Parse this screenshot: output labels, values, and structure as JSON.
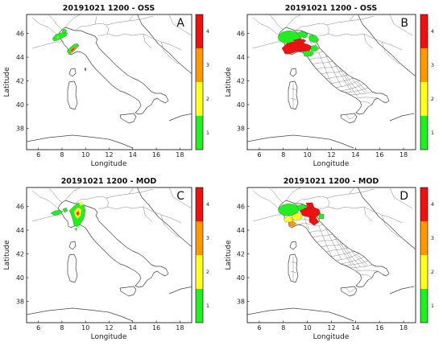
{
  "panels": [
    {
      "title": "20191021 1200 - OSS",
      "letter": "A",
      "xlabel": "Longitude",
      "ylabel": "Latitude",
      "detail": "coarse"
    },
    {
      "title": "20191021 1200 - OSS",
      "letter": "B",
      "xlabel": "Longitude",
      "ylabel": "Latitude",
      "detail": "regions"
    },
    {
      "title": "20191021 1200 - MOD",
      "letter": "C",
      "xlabel": "Longitude",
      "ylabel": "Latitude",
      "detail": "coarse"
    },
    {
      "title": "20191021 1200 - MOD",
      "letter": "D",
      "xlabel": "Longitude",
      "ylabel": "Latitude",
      "detail": "regions"
    }
  ],
  "axes": {
    "xlim": [
      5,
      19
    ],
    "ylim": [
      36.2,
      47.6
    ],
    "xticks": [
      "6",
      "8",
      "10",
      "12",
      "14",
      "16",
      "18"
    ],
    "yticks": [
      "38",
      "40",
      "42",
      "44",
      "46"
    ]
  },
  "colorbar": {
    "levels": [
      "1",
      "2",
      "3",
      "4"
    ],
    "colors": [
      "#22ee22",
      "#ffff22",
      "#ff9900",
      "#ee1111"
    ]
  },
  "colors": {
    "level1": "#22ee22",
    "level2": "#ffff22",
    "level3": "#ff9900",
    "level4": "#ee1111"
  }
}
